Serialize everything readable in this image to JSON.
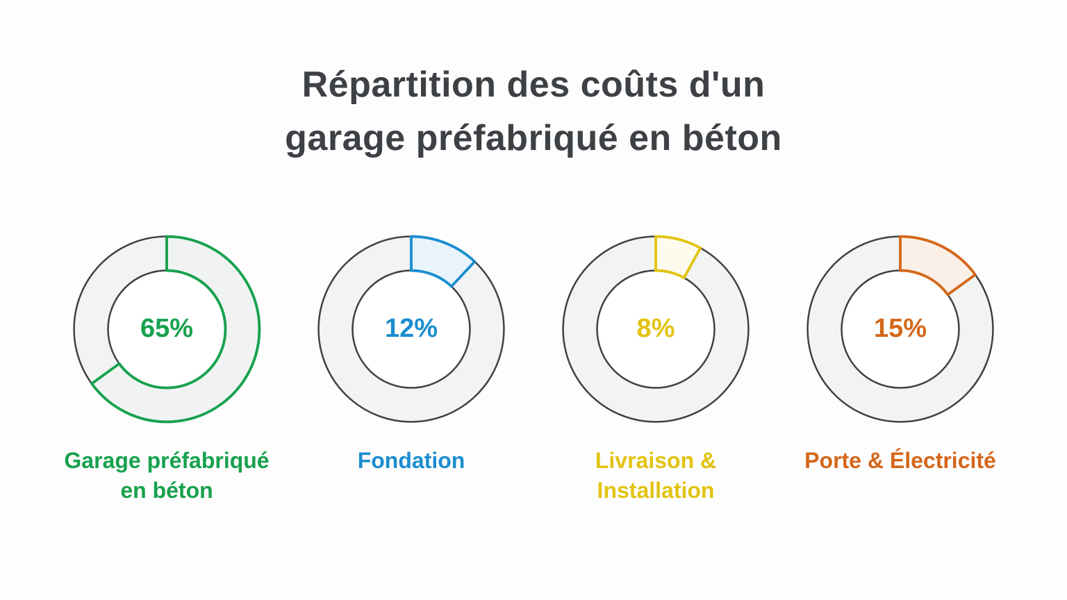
{
  "title": {
    "line1": "Répartition des coûts d'un",
    "line2": "garage préfabriqué en béton"
  },
  "chart_data": {
    "type": "pie",
    "subtype": "donut-small-multiples",
    "title": "Répartition des coûts d'un garage préfabriqué en béton",
    "unit": "%",
    "start_angle_deg": 0,
    "direction": "clockwise",
    "legend_position": "below-each-donut",
    "background": "#fdfdfd",
    "ring_fill": "#f2f4f3",
    "ring_outline": "#3f4245",
    "inner_fill": "#ffffff",
    "segments": [
      {
        "label": "Garage préfabriqué en béton",
        "value": 65,
        "value_label": "65%",
        "color": "#17a14e",
        "fill_tint": "#f0f3f1"
      },
      {
        "label": "Fondation",
        "value": 12,
        "value_label": "12%",
        "color": "#1b8dd0",
        "fill_tint": "#e9f3fb"
      },
      {
        "label": "Livraison & Installation",
        "value": 8,
        "value_label": "8%",
        "color": "#e2c312",
        "fill_tint": "#fdfbee"
      },
      {
        "label": "Porte & Électricité",
        "value": 15,
        "value_label": "15%",
        "color": "#d4671a",
        "fill_tint": "#faf0e8"
      }
    ]
  }
}
